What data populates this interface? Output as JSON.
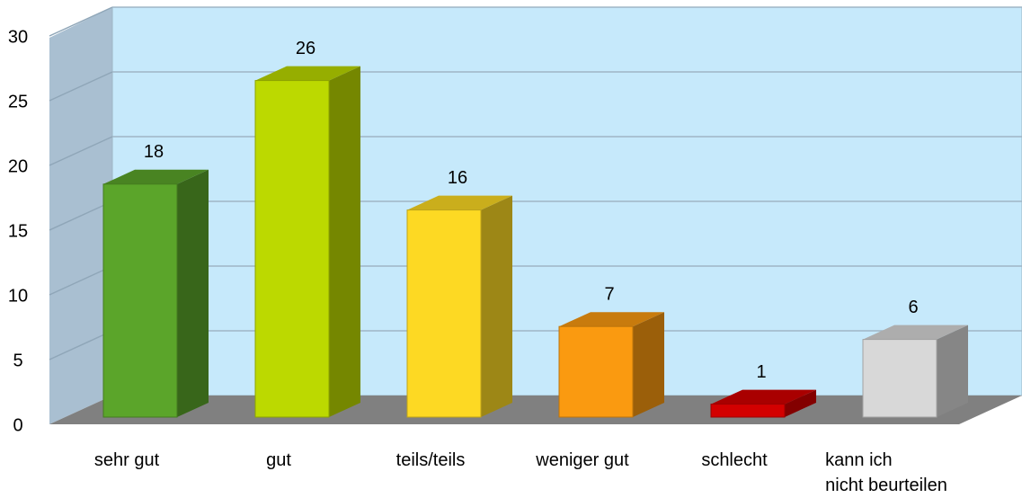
{
  "chart_data": {
    "type": "bar3d",
    "categories": [
      "sehr gut",
      "gut",
      "teils/teils",
      "weniger gut",
      "schlecht",
      "kann ich\nnicht beurteilen"
    ],
    "values": [
      18,
      26,
      16,
      7,
      1,
      6
    ],
    "colors": [
      "#5ba52a",
      "#bcd900",
      "#fdd923",
      "#fa9a10",
      "#d30000",
      "#d8d8d8"
    ],
    "ylim": [
      0,
      30
    ],
    "yticks": [
      0,
      5,
      10,
      15,
      20,
      25,
      30
    ],
    "grid": true
  }
}
